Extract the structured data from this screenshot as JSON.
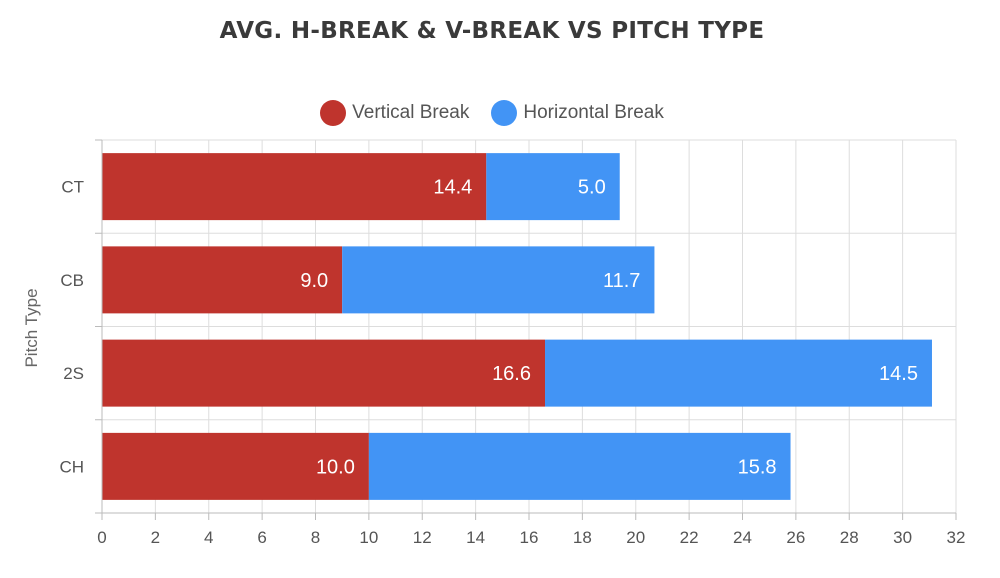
{
  "chart_data": {
    "type": "bar",
    "orientation": "horizontal",
    "stacked": true,
    "title": "AVG. H-BREAK & V-BREAK VS PITCH TYPE",
    "xlabel": "",
    "ylabel": "Pitch Type",
    "categories": [
      "CT",
      "CB",
      "2S",
      "CH"
    ],
    "series": [
      {
        "name": "Vertical Break",
        "color": "#bf342d",
        "values": [
          14.4,
          9.0,
          16.6,
          10.0
        ],
        "labels": [
          "14.4",
          "9.0",
          "16.6",
          "10.0"
        ]
      },
      {
        "name": "Horizontal Break",
        "color": "#4294f5",
        "values": [
          5.0,
          11.7,
          14.5,
          15.8
        ],
        "labels": [
          "5.0",
          "11.7",
          "14.5",
          "15.8"
        ]
      }
    ],
    "xlim": [
      0,
      32
    ],
    "xticks": [
      "0",
      "2",
      "4",
      "6",
      "8",
      "10",
      "12",
      "14",
      "16",
      "18",
      "20",
      "22",
      "24",
      "26",
      "28",
      "30",
      "32"
    ],
    "grid": true,
    "legend_position": "top-center"
  }
}
